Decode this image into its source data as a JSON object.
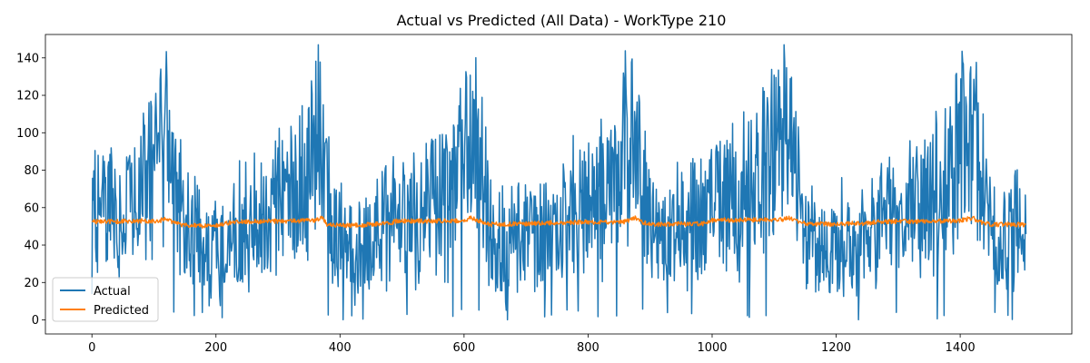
{
  "chart_data": {
    "type": "line",
    "title": "Actual vs Predicted (All Data) - WorkType 210",
    "xlabel": "",
    "ylabel": "",
    "xlim": [
      -75,
      1580
    ],
    "ylim": [
      -7.5,
      152.5
    ],
    "xticks": [
      0,
      200,
      400,
      600,
      800,
      1000,
      1200,
      1400
    ],
    "yticks": [
      0,
      20,
      40,
      60,
      80,
      100,
      120,
      140
    ],
    "grid": false,
    "legend_position": "lower-left",
    "n_points": 1507,
    "actual_anchors": [
      [
        0,
        53
      ],
      [
        20,
        58
      ],
      [
        40,
        60
      ],
      [
        60,
        62
      ],
      [
        80,
        67
      ],
      [
        100,
        80
      ],
      [
        110,
        92
      ],
      [
        120,
        95
      ],
      [
        130,
        80
      ],
      [
        140,
        58
      ],
      [
        160,
        50
      ],
      [
        180,
        42
      ],
      [
        200,
        32
      ],
      [
        220,
        40
      ],
      [
        240,
        52
      ],
      [
        260,
        55
      ],
      [
        280,
        58
      ],
      [
        300,
        62
      ],
      [
        320,
        67
      ],
      [
        340,
        78
      ],
      [
        360,
        95
      ],
      [
        370,
        100
      ],
      [
        380,
        62
      ],
      [
        400,
        42
      ],
      [
        420,
        35
      ],
      [
        440,
        42
      ],
      [
        460,
        48
      ],
      [
        480,
        52
      ],
      [
        500,
        55
      ],
      [
        520,
        57
      ],
      [
        540,
        58
      ],
      [
        560,
        62
      ],
      [
        580,
        68
      ],
      [
        600,
        82
      ],
      [
        620,
        98
      ],
      [
        630,
        85
      ],
      [
        640,
        48
      ],
      [
        660,
        40
      ],
      [
        680,
        42
      ],
      [
        700,
        45
      ],
      [
        720,
        48
      ],
      [
        740,
        52
      ],
      [
        760,
        55
      ],
      [
        780,
        58
      ],
      [
        800,
        60
      ],
      [
        820,
        65
      ],
      [
        840,
        75
      ],
      [
        860,
        90
      ],
      [
        875,
        100
      ],
      [
        890,
        70
      ],
      [
        900,
        48
      ],
      [
        920,
        45
      ],
      [
        940,
        47
      ],
      [
        960,
        52
      ],
      [
        980,
        56
      ],
      [
        1000,
        60
      ],
      [
        1020,
        62
      ],
      [
        1040,
        65
      ],
      [
        1060,
        70
      ],
      [
        1080,
        75
      ],
      [
        1100,
        88
      ],
      [
        1120,
        102
      ],
      [
        1135,
        82
      ],
      [
        1145,
        45
      ],
      [
        1160,
        40
      ],
      [
        1180,
        38
      ],
      [
        1200,
        40
      ],
      [
        1220,
        42
      ],
      [
        1240,
        45
      ],
      [
        1260,
        48
      ],
      [
        1280,
        52
      ],
      [
        1300,
        55
      ],
      [
        1320,
        58
      ],
      [
        1340,
        62
      ],
      [
        1360,
        68
      ],
      [
        1380,
        78
      ],
      [
        1400,
        90
      ],
      [
        1420,
        95
      ],
      [
        1435,
        75
      ],
      [
        1450,
        50
      ],
      [
        1480,
        48
      ],
      [
        1506,
        50
      ]
    ],
    "actual_min": 0,
    "actual_max": 147,
    "predicted_anchors": [
      [
        0,
        52.5
      ],
      [
        110,
        53
      ],
      [
        120,
        54.5
      ],
      [
        130,
        52
      ],
      [
        150,
        50.5
      ],
      [
        200,
        50.2
      ],
      [
        230,
        52.5
      ],
      [
        360,
        53
      ],
      [
        370,
        54.5
      ],
      [
        380,
        51
      ],
      [
        400,
        50.3
      ],
      [
        480,
        51.5
      ],
      [
        490,
        52.8
      ],
      [
        600,
        53
      ],
      [
        610,
        54.5
      ],
      [
        625,
        53
      ],
      [
        640,
        51
      ],
      [
        760,
        52
      ],
      [
        860,
        52.5
      ],
      [
        875,
        54.5
      ],
      [
        890,
        52
      ],
      [
        900,
        51
      ],
      [
        990,
        51.5
      ],
      [
        1000,
        53.3
      ],
      [
        1110,
        53.5
      ],
      [
        1125,
        54.5
      ],
      [
        1140,
        52
      ],
      [
        1160,
        51.2
      ],
      [
        1250,
        51.5
      ],
      [
        1265,
        52.5
      ],
      [
        1400,
        53
      ],
      [
        1420,
        54.5
      ],
      [
        1435,
        52
      ],
      [
        1450,
        51
      ],
      [
        1506,
        51
      ]
    ],
    "series": [
      {
        "name": "Actual",
        "color": "#1f77b4"
      },
      {
        "name": "Predicted",
        "color": "#ff7f0e"
      }
    ]
  }
}
